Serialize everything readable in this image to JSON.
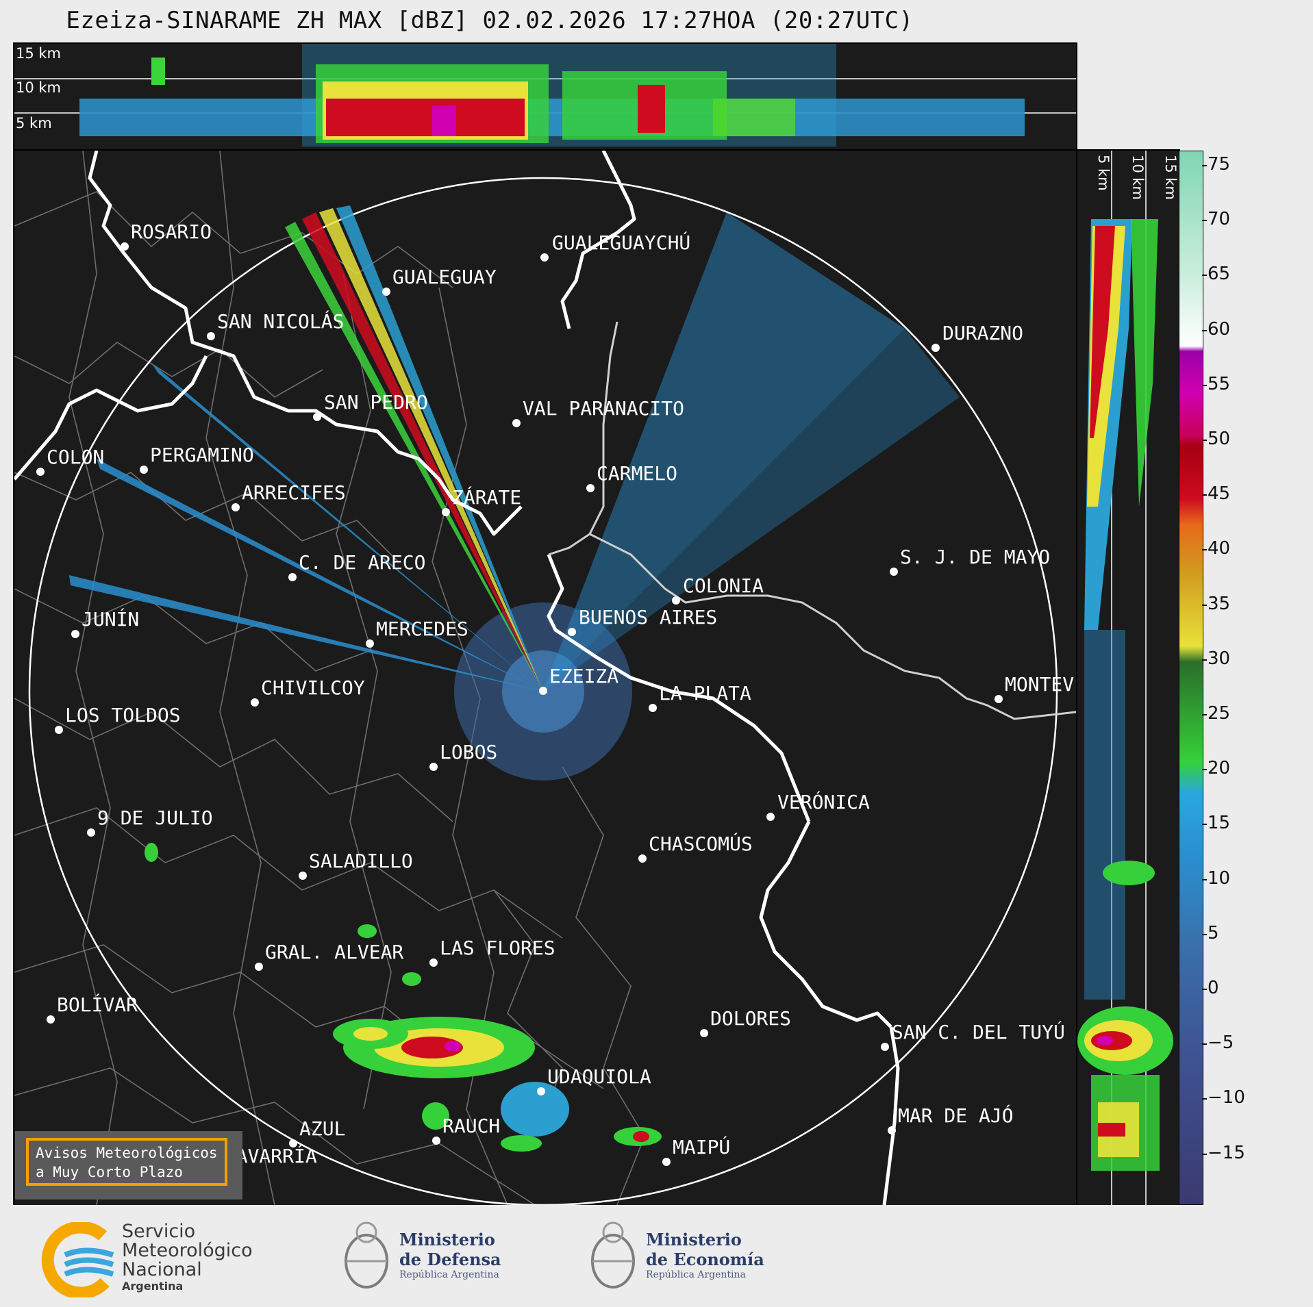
{
  "title": "Ezeiza-SINARAME ZH MAX [dBZ] 02.02.2026 17:27HOA (20:27UTC)",
  "top_panel": {
    "labels": [
      "15 km",
      "10 km",
      "5 km"
    ]
  },
  "side_panel": {
    "labels": [
      "5 km",
      "10 km",
      "15 km"
    ]
  },
  "colorbar": {
    "ticks": [
      "75",
      "70",
      "65",
      "60",
      "55",
      "50",
      "45",
      "40",
      "35",
      "30",
      "25",
      "20",
      "15",
      "10",
      "5",
      "0",
      "−5",
      "−10",
      "−15"
    ]
  },
  "cities": [
    {
      "name": "ROSARIO"
    },
    {
      "name": "GUALEGUAYCHÚ"
    },
    {
      "name": "GUALEGUAY"
    },
    {
      "name": "SAN NICOLÁS"
    },
    {
      "name": "DURAZNO"
    },
    {
      "name": "SAN PEDRO"
    },
    {
      "name": "VAL PARANACITO"
    },
    {
      "name": "COLON"
    },
    {
      "name": "PERGAMINO"
    },
    {
      "name": "CARMELO"
    },
    {
      "name": "ARRECIFES"
    },
    {
      "name": "ZÁRATE"
    },
    {
      "name": "C. DE ARECO"
    },
    {
      "name": "S. J. DE MAYO"
    },
    {
      "name": "COLONIA"
    },
    {
      "name": "BUENOS AIRES"
    },
    {
      "name": "JUNÍN"
    },
    {
      "name": "MERCEDES"
    },
    {
      "name": "EZEIZA"
    },
    {
      "name": "MONTEV"
    },
    {
      "name": "CHIVILCOY"
    },
    {
      "name": "LA PLATA"
    },
    {
      "name": "LOS TOLDOS"
    },
    {
      "name": "LOBOS"
    },
    {
      "name": "VERÓNICA"
    },
    {
      "name": "9 DE JULIO"
    },
    {
      "name": "CHASCOMÚS"
    },
    {
      "name": "SALADILLO"
    },
    {
      "name": "GRAL. ALVEAR"
    },
    {
      "name": "LAS FLORES"
    },
    {
      "name": "BOLÍVAR"
    },
    {
      "name": "DOLORES"
    },
    {
      "name": "SAN C. DEL TUYÚ"
    },
    {
      "name": "UDAQUIOLA"
    },
    {
      "name": "MAR DE AJÓ"
    },
    {
      "name": "AZUL"
    },
    {
      "name": "RAUCH"
    },
    {
      "name": "MAIPÚ"
    },
    {
      "name": "OLAVARRÍA"
    }
  ],
  "aviso": {
    "line1": "Avisos Meteorológicos",
    "line2": "a Muy Corto Plazo"
  },
  "footer": {
    "smn": {
      "line1": "Servicio",
      "line2": "Meteorológico",
      "line3": "Nacional",
      "line4": "Argentina"
    },
    "defensa": {
      "line1": "Ministerio",
      "line2": "de Defensa",
      "line3": "República Argentina"
    },
    "economia": {
      "line1": "Ministerio",
      "line2": "de Economía",
      "line3": "República Argentina"
    }
  },
  "colors": {
    "background": "#1b1b1b",
    "coast": "#ffffff",
    "border": "#8a8a8a",
    "accent": "#f5a000"
  }
}
